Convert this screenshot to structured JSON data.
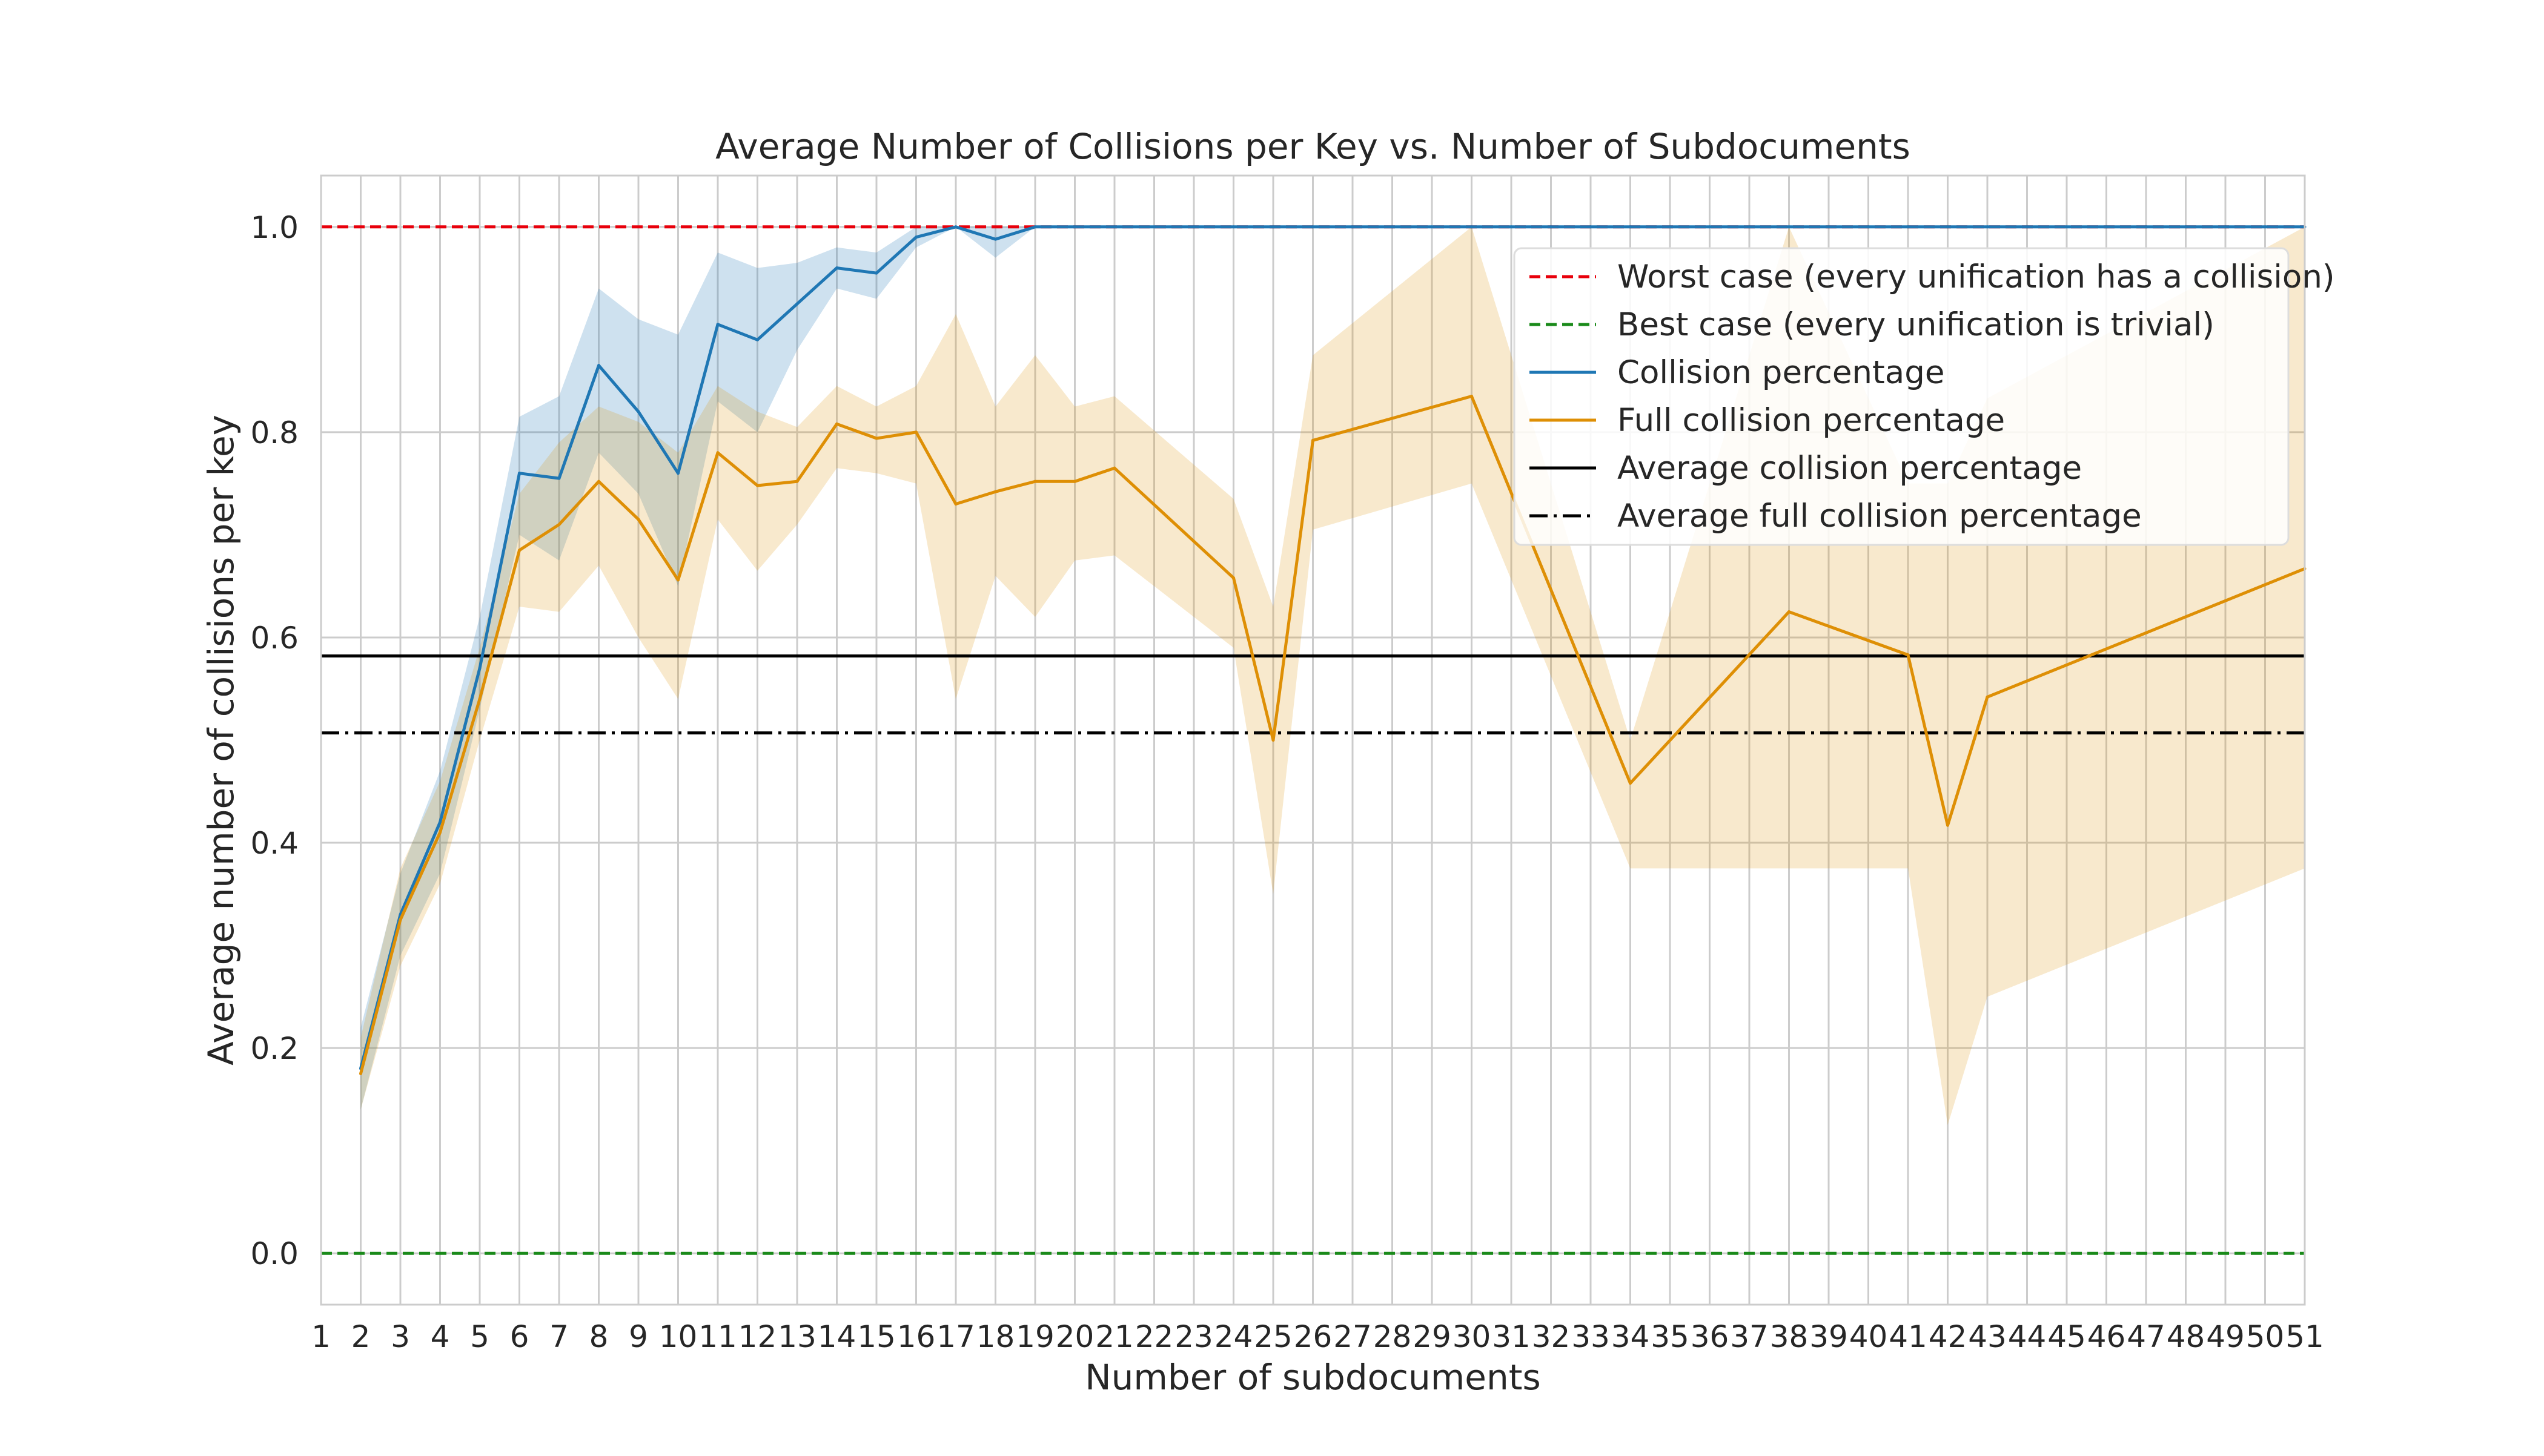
{
  "chart_data": {
    "type": "line",
    "title": "Average Number of Collisions per Key vs. Number of Subdocuments",
    "xlabel": "Number of subdocuments",
    "ylabel": "Average number of collisions per key",
    "xlim": [
      1,
      51
    ],
    "ylim": [
      -0.05,
      1.05
    ],
    "x_ticks": [
      "1",
      "2",
      "3",
      "4",
      "5",
      "6",
      "7",
      "8",
      "9",
      "10",
      "11",
      "12",
      "13",
      "14",
      "15",
      "16",
      "17",
      "18",
      "19",
      "20",
      "21",
      "22",
      "23",
      "24",
      "25",
      "26",
      "27",
      "28",
      "29",
      "30",
      "31",
      "32",
      "33",
      "34",
      "35",
      "36",
      "37",
      "38",
      "39",
      "40",
      "41",
      "42",
      "43",
      "44",
      "45",
      "46",
      "47",
      "48",
      "49",
      "50",
      "51"
    ],
    "y_ticks": [
      "0.0",
      "0.2",
      "0.4",
      "0.6",
      "0.8",
      "1.0"
    ],
    "grid": true,
    "legend_position": "upper-right",
    "series": [
      {
        "name": "Collision percentage",
        "color": "#1f77b4",
        "x": [
          2,
          3,
          4,
          5,
          6,
          7,
          8,
          9,
          10,
          11,
          12,
          13,
          14,
          15,
          16,
          17,
          18,
          19,
          20,
          21,
          22,
          23,
          24,
          25,
          26,
          27,
          28,
          29,
          30,
          31,
          32,
          33,
          34,
          35,
          36,
          37,
          38,
          39,
          40,
          41,
          42,
          43,
          44,
          45,
          46,
          47,
          48,
          49,
          50,
          51
        ],
        "values": [
          0.18,
          0.33,
          0.42,
          0.57,
          0.76,
          0.755,
          0.865,
          0.82,
          0.76,
          0.905,
          0.89,
          0.925,
          0.96,
          0.955,
          0.99,
          1.0,
          0.988,
          1.0,
          1.0,
          1.0,
          1.0,
          1.0,
          1.0,
          1.0,
          1.0,
          1.0,
          1.0,
          1.0,
          1.0,
          1.0,
          1.0,
          1.0,
          1.0,
          1.0,
          1.0,
          1.0,
          1.0,
          1.0,
          1.0,
          1.0,
          1.0,
          1.0,
          1.0,
          1.0,
          1.0,
          1.0,
          1.0,
          1.0,
          1.0,
          1.0
        ],
        "ci_lower": [
          0.14,
          0.29,
          0.37,
          0.53,
          0.7,
          0.675,
          0.78,
          0.74,
          0.65,
          0.83,
          0.8,
          0.88,
          0.94,
          0.93,
          0.98,
          1.0,
          0.97,
          1.0,
          1.0,
          1.0,
          1.0,
          1.0,
          1.0,
          1.0,
          1.0,
          1.0,
          1.0,
          1.0,
          1.0,
          1.0,
          1.0,
          1.0,
          1.0,
          1.0,
          1.0,
          1.0,
          1.0,
          1.0,
          1.0,
          1.0,
          1.0,
          1.0,
          1.0,
          1.0,
          1.0,
          1.0,
          1.0,
          1.0,
          1.0,
          1.0
        ],
        "ci_upper": [
          0.22,
          0.37,
          0.47,
          0.62,
          0.815,
          0.835,
          0.94,
          0.91,
          0.895,
          0.975,
          0.96,
          0.965,
          0.98,
          0.975,
          1.0,
          1.0,
          1.0,
          1.0,
          1.0,
          1.0,
          1.0,
          1.0,
          1.0,
          1.0,
          1.0,
          1.0,
          1.0,
          1.0,
          1.0,
          1.0,
          1.0,
          1.0,
          1.0,
          1.0,
          1.0,
          1.0,
          1.0,
          1.0,
          1.0,
          1.0,
          1.0,
          1.0,
          1.0,
          1.0,
          1.0,
          1.0,
          1.0,
          1.0,
          1.0,
          1.0
        ]
      },
      {
        "name": "Full collision percentage",
        "color": "#de8f05",
        "x": [
          2,
          3,
          4,
          5,
          6,
          7,
          8,
          9,
          10,
          11,
          12,
          13,
          14,
          15,
          16,
          17,
          18,
          19,
          20,
          21,
          24,
          25,
          26,
          30,
          34,
          38,
          41,
          42,
          43,
          51
        ],
        "values": [
          0.175,
          0.325,
          0.41,
          0.54,
          0.685,
          0.71,
          0.752,
          0.715,
          0.656,
          0.78,
          0.748,
          0.752,
          0.808,
          0.794,
          0.8,
          0.73,
          0.742,
          0.752,
          0.752,
          0.765,
          0.658,
          0.5,
          0.792,
          0.835,
          0.458,
          0.625,
          0.583,
          0.417,
          0.542,
          0.667
        ],
        "ci_lower": [
          0.14,
          0.28,
          0.36,
          0.5,
          0.63,
          0.625,
          0.67,
          0.6,
          0.54,
          0.715,
          0.665,
          0.71,
          0.765,
          0.76,
          0.75,
          0.54,
          0.66,
          0.62,
          0.675,
          0.68,
          0.59,
          0.35,
          0.705,
          0.75,
          0.375,
          0.375,
          0.375,
          0.125,
          0.25,
          0.375
        ],
        "ci_upper": [
          0.21,
          0.375,
          0.46,
          0.59,
          0.74,
          0.79,
          0.825,
          0.81,
          0.78,
          0.845,
          0.82,
          0.805,
          0.845,
          0.825,
          0.845,
          0.915,
          0.825,
          0.875,
          0.825,
          0.835,
          0.735,
          0.63,
          0.875,
          1.0,
          0.5,
          1.0,
          0.75,
          0.75,
          0.833,
          1.0
        ]
      }
    ],
    "reference_lines": [
      {
        "name": "Worst case (every unification has a collision)",
        "y": 1.0,
        "color": "#e8000b",
        "style": "dashed"
      },
      {
        "name": "Best case (every unification is trivial)",
        "y": 0.0,
        "color": "#1a8a1a",
        "style": "dashed"
      },
      {
        "name": "Average collision percentage",
        "y": 0.582,
        "color": "#000000",
        "style": "solid"
      },
      {
        "name": "Average full collision percentage",
        "y": 0.507,
        "color": "#000000",
        "style": "dashdot"
      }
    ],
    "legend_order": [
      "Worst case (every unification has a collision)",
      "Best case (every unification is trivial)",
      "Collision percentage",
      "Full collision percentage",
      "Average collision percentage",
      "Average full collision percentage"
    ]
  }
}
